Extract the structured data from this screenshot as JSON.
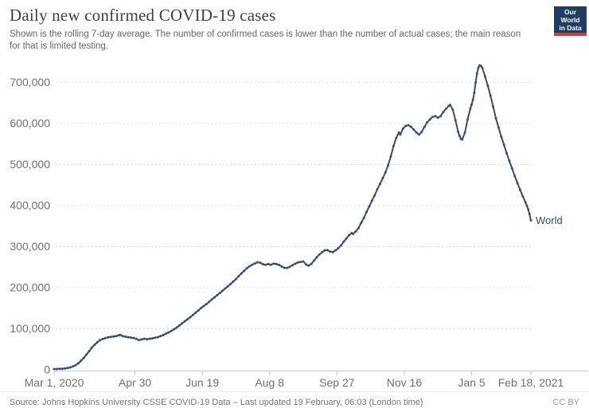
{
  "header": {
    "title": "Daily new confirmed COVID-19 cases",
    "subtitle": "Shown is the rolling 7-day average. The number of confirmed cases is lower than the number of actual cases; the main reason for that is limited testing."
  },
  "logo": {
    "line1": "Our World",
    "line2": "in Data"
  },
  "footer": {
    "source": "Source: Johns Hopkins University CSSE COVID-19 Data – Last updated 19 February, 06:03 (London time)",
    "license": "CC BY"
  },
  "colors": {
    "line": "#3C4E66",
    "grid": "#dddddd",
    "axis": "#c8c8c8",
    "tick_label": "#6e7079",
    "entity_label": "#3C4E66"
  },
  "chart_data": {
    "type": "line",
    "title": "Daily new confirmed COVID-19 cases",
    "series_name": "World",
    "x_unit": "days since Mar 1, 2020",
    "ylim": [
      0,
      700000
    ],
    "xlim_days": [
      0,
      354
    ],
    "grid": "dashed-horizontal",
    "y_ticks": [
      {
        "label": "0",
        "value": 0
      },
      {
        "label": "100,000",
        "value": 100000
      },
      {
        "label": "200,000",
        "value": 200000
      },
      {
        "label": "300,000",
        "value": 300000
      },
      {
        "label": "400,000",
        "value": 400000
      },
      {
        "label": "500,000",
        "value": 500000
      },
      {
        "label": "600,000",
        "value": 600000
      },
      {
        "label": "700,000",
        "value": 700000
      }
    ],
    "x_ticks": [
      {
        "label": "Mar 1, 2020",
        "day": 0
      },
      {
        "label": "Apr 30",
        "day": 60
      },
      {
        "label": "Jun 19",
        "day": 110
      },
      {
        "label": "Aug 8",
        "day": 160
      },
      {
        "label": "Sep 27",
        "day": 210
      },
      {
        "label": "Nov 16",
        "day": 260
      },
      {
        "label": "Jan 5",
        "day": 310
      },
      {
        "label": "Feb 18, 2021",
        "day": 354
      }
    ],
    "points": [
      [
        0,
        1800
      ],
      [
        2,
        2000
      ],
      [
        4,
        2300
      ],
      [
        6,
        2600
      ],
      [
        8,
        3200
      ],
      [
        10,
        4300
      ],
      [
        12,
        5900
      ],
      [
        14,
        8100
      ],
      [
        16,
        11200
      ],
      [
        18,
        16000
      ],
      [
        20,
        22000
      ],
      [
        22,
        29000
      ],
      [
        24,
        37000
      ],
      [
        26,
        45000
      ],
      [
        28,
        54000
      ],
      [
        30,
        61000
      ],
      [
        32,
        67000
      ],
      [
        34,
        72000
      ],
      [
        36,
        75000
      ],
      [
        38,
        77000
      ],
      [
        40,
        79000
      ],
      [
        42,
        80000
      ],
      [
        44,
        81000
      ],
      [
        46,
        82000
      ],
      [
        48,
        84000
      ],
      [
        49,
        85000
      ],
      [
        51,
        82000
      ],
      [
        53,
        80500
      ],
      [
        55,
        79500
      ],
      [
        57,
        78500
      ],
      [
        59,
        77500
      ],
      [
        61,
        75500
      ],
      [
        63,
        72500
      ],
      [
        65,
        74000
      ],
      [
        67,
        75500
      ],
      [
        69,
        74500
      ],
      [
        71,
        75500
      ],
      [
        73,
        76500
      ],
      [
        75,
        78000
      ],
      [
        77,
        79500
      ],
      [
        79,
        82000
      ],
      [
        81,
        84500
      ],
      [
        83,
        88000
      ],
      [
        85,
        91000
      ],
      [
        87,
        94500
      ],
      [
        89,
        98500
      ],
      [
        91,
        103000
      ],
      [
        93,
        108000
      ],
      [
        95,
        113000
      ],
      [
        97,
        118000
      ],
      [
        99,
        123000
      ],
      [
        101,
        128000
      ],
      [
        103,
        133500
      ],
      [
        105,
        139000
      ],
      [
        107,
        144500
      ],
      [
        109,
        150000
      ],
      [
        111,
        155000
      ],
      [
        113,
        160000
      ],
      [
        115,
        165500
      ],
      [
        117,
        171000
      ],
      [
        119,
        176500
      ],
      [
        121,
        181500
      ],
      [
        123,
        187000
      ],
      [
        125,
        192500
      ],
      [
        127,
        198000
      ],
      [
        129,
        203500
      ],
      [
        131,
        209000
      ],
      [
        133,
        215000
      ],
      [
        135,
        221000
      ],
      [
        137,
        228000
      ],
      [
        139,
        234500
      ],
      [
        141,
        241000
      ],
      [
        143,
        247000
      ],
      [
        145,
        252000
      ],
      [
        147,
        256000
      ],
      [
        149,
        259000
      ],
      [
        151,
        262000
      ],
      [
        153,
        261000
      ],
      [
        155,
        257000
      ],
      [
        157,
        256000
      ],
      [
        159,
        257500
      ],
      [
        161,
        256000
      ],
      [
        163,
        258500
      ],
      [
        165,
        257500
      ],
      [
        167,
        255500
      ],
      [
        169,
        251500
      ],
      [
        171,
        248500
      ],
      [
        173,
        248000
      ],
      [
        175,
        251000
      ],
      [
        177,
        255000
      ],
      [
        179,
        258500
      ],
      [
        181,
        261500
      ],
      [
        183,
        262500
      ],
      [
        185,
        264000
      ],
      [
        187,
        256500
      ],
      [
        189,
        253500
      ],
      [
        191,
        258000
      ],
      [
        193,
        266000
      ],
      [
        195,
        274000
      ],
      [
        197,
        281000
      ],
      [
        199,
        286500
      ],
      [
        201,
        291000
      ],
      [
        203,
        291500
      ],
      [
        205,
        287500
      ],
      [
        207,
        287000
      ],
      [
        209,
        291000
      ],
      [
        211,
        296000
      ],
      [
        213,
        303000
      ],
      [
        215,
        312000
      ],
      [
        217,
        320000
      ],
      [
        219,
        328000
      ],
      [
        221,
        333000
      ],
      [
        222,
        331000
      ],
      [
        224,
        337000
      ],
      [
        226,
        345000
      ],
      [
        228,
        358000
      ],
      [
        230,
        370000
      ],
      [
        232,
        385000
      ],
      [
        234,
        398000
      ],
      [
        236,
        412000
      ],
      [
        238,
        425000
      ],
      [
        240,
        440000
      ],
      [
        242,
        453000
      ],
      [
        244,
        467000
      ],
      [
        246,
        481000
      ],
      [
        248,
        498000
      ],
      [
        250,
        520000
      ],
      [
        252,
        545000
      ],
      [
        254,
        565000
      ],
      [
        256,
        578000
      ],
      [
        257,
        573000
      ],
      [
        259,
        588000
      ],
      [
        261,
        594000
      ],
      [
        263,
        596000
      ],
      [
        265,
        592000
      ],
      [
        267,
        585000
      ],
      [
        269,
        578000
      ],
      [
        271,
        573000
      ],
      [
        273,
        580000
      ],
      [
        275,
        592000
      ],
      [
        277,
        603000
      ],
      [
        279,
        610000
      ],
      [
        281,
        616000
      ],
      [
        283,
        618000
      ],
      [
        285,
        614000
      ],
      [
        287,
        618000
      ],
      [
        289,
        628000
      ],
      [
        291,
        636000
      ],
      [
        293,
        643000
      ],
      [
        294,
        645000
      ],
      [
        296,
        634000
      ],
      [
        298,
        608000
      ],
      [
        300,
        580000
      ],
      [
        301,
        570000
      ],
      [
        302,
        563000
      ],
      [
        303,
        561000
      ],
      [
        305,
        578000
      ],
      [
        307,
        610000
      ],
      [
        309,
        636000
      ],
      [
        310,
        646000
      ],
      [
        311,
        658000
      ],
      [
        312,
        675000
      ],
      [
        313,
        700000
      ],
      [
        314,
        722000
      ],
      [
        315,
        736000
      ],
      [
        316,
        742000
      ],
      [
        317,
        740000
      ],
      [
        318,
        735000
      ],
      [
        320,
        714000
      ],
      [
        322,
        692000
      ],
      [
        324,
        668000
      ],
      [
        326,
        641000
      ],
      [
        328,
        613000
      ],
      [
        330,
        590000
      ],
      [
        332,
        568000
      ],
      [
        334,
        548000
      ],
      [
        336,
        528000
      ],
      [
        338,
        509000
      ],
      [
        340,
        491000
      ],
      [
        342,
        472000
      ],
      [
        344,
        455000
      ],
      [
        346,
        438000
      ],
      [
        348,
        423000
      ],
      [
        350,
        408000
      ],
      [
        351,
        400000
      ],
      [
        352,
        391000
      ],
      [
        353,
        379000
      ],
      [
        354,
        364000
      ]
    ]
  }
}
